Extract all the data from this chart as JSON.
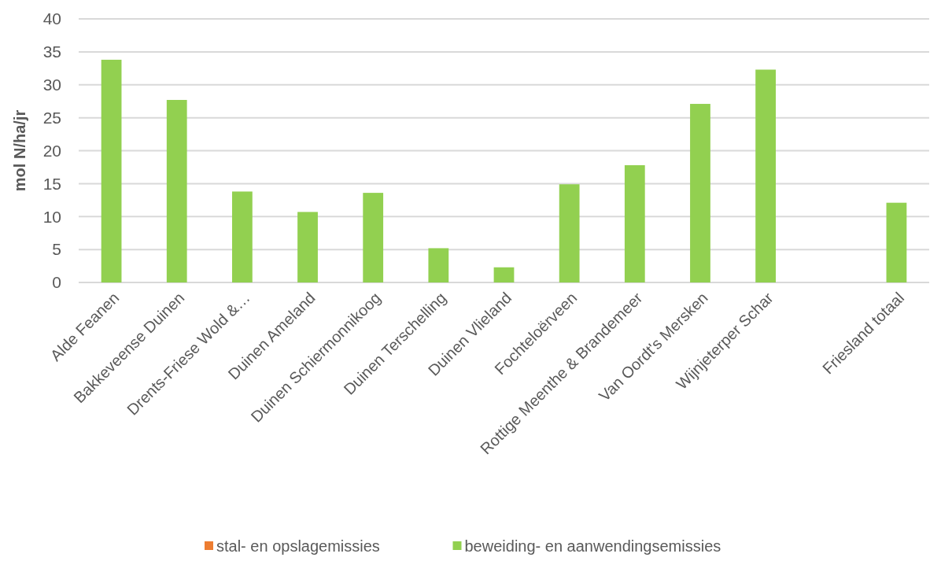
{
  "chart_data": {
    "type": "bar",
    "stacked": true,
    "ylabel": "mol N/ha/jr",
    "categories": [
      "Alde Feanen",
      "Bakkeveense Duinen",
      "Drents-Friese Wold &…",
      "Duinen Ameland",
      "Duinen Schiermonnikoog",
      "Duinen Terschelling",
      "Duinen Vlieland",
      "Fochteloërveen",
      "Rottige Meenthe & Brandemeer",
      "Van Oordt's Mersken",
      "Wijnjeterper Schar",
      null,
      "Friesland totaal"
    ],
    "series": [
      {
        "name": "stal- en opslagemissies",
        "color": "#ed7d31",
        "values": [
          0,
          0,
          0,
          0,
          0,
          0,
          0,
          0,
          0,
          0,
          0,
          null,
          0
        ]
      },
      {
        "name": "beweiding- en aanwendingsemissies",
        "color": "#92d050",
        "values": [
          33.8,
          27.7,
          13.8,
          10.7,
          13.6,
          5.2,
          2.3,
          14.9,
          17.8,
          27.1,
          32.3,
          null,
          12.1
        ]
      }
    ],
    "ylim": [
      0,
      40
    ],
    "yticks": [
      0,
      5,
      10,
      15,
      20,
      25,
      30,
      35,
      40
    ],
    "grid": "y",
    "legend": "bottom"
  }
}
